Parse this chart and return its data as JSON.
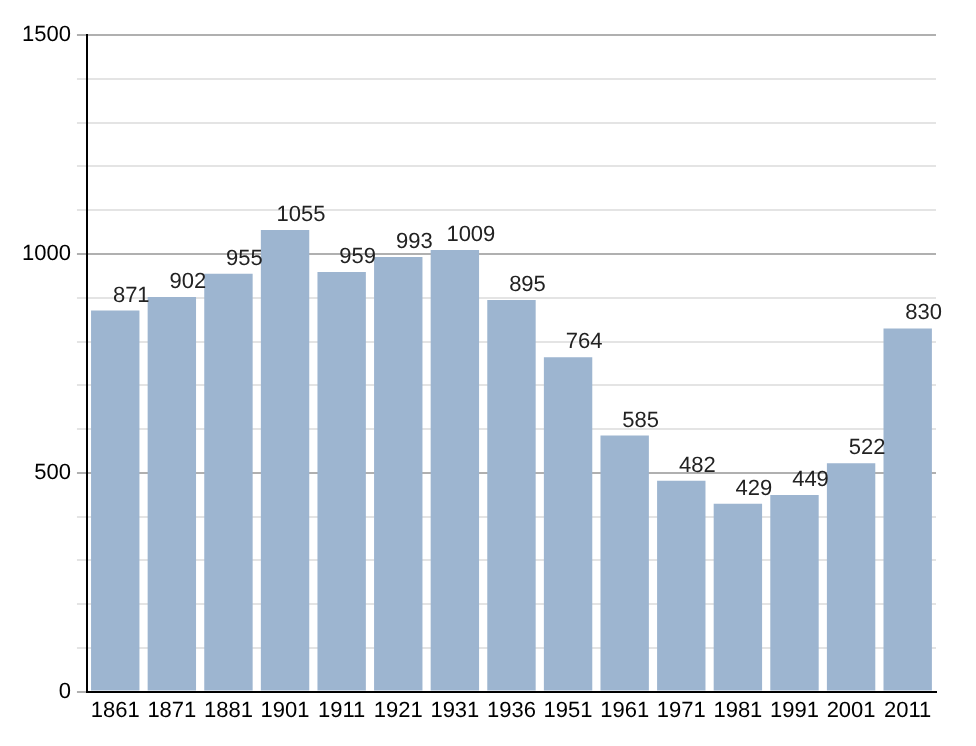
{
  "chart_data": {
    "type": "bar",
    "categories": [
      "1861",
      "1871",
      "1881",
      "1901",
      "1911",
      "1921",
      "1931",
      "1936",
      "1951",
      "1961",
      "1971",
      "1981",
      "1991",
      "2001",
      "2011"
    ],
    "values": [
      871,
      902,
      955,
      1055,
      959,
      993,
      1009,
      895,
      764,
      585,
      482,
      429,
      449,
      522,
      830
    ],
    "color": "#9db5d0",
    "ylim": [
      0,
      1500
    ],
    "yticks": [
      0,
      {
        "value": 100,
        "label": null
      },
      {
        "value": 200,
        "label": null
      },
      {
        "value": 300,
        "label": null
      },
      {
        "value": 400,
        "label": null
      },
      500,
      {
        "value": 600,
        "label": null
      },
      {
        "value": 700,
        "label": null
      },
      {
        "value": 800,
        "label": null
      },
      {
        "value": 900,
        "label": null
      },
      1000,
      {
        "value": 1100,
        "label": null
      },
      {
        "value": 1200,
        "label": null
      },
      {
        "value": 1300,
        "label": null
      },
      {
        "value": 1400,
        "label": null
      },
      1500
    ],
    "grid": "y",
    "data_labels": true
  }
}
